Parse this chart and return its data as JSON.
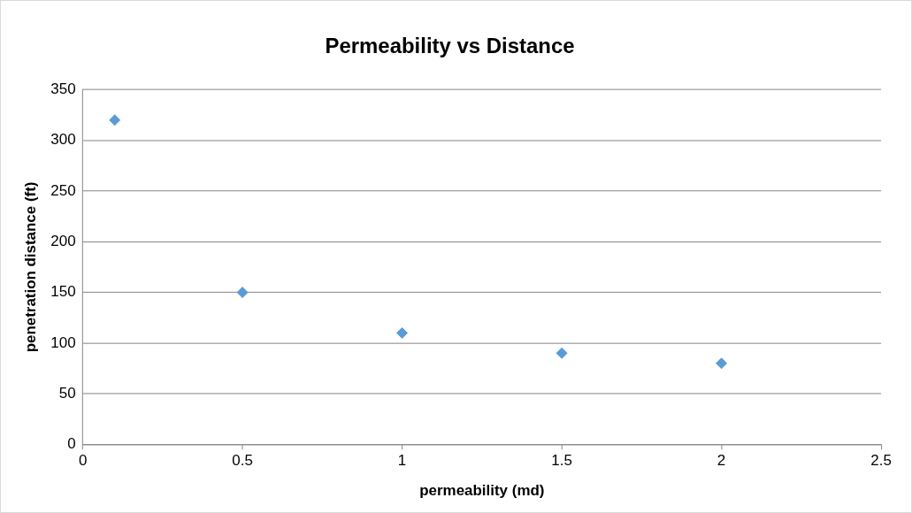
{
  "chart_data": {
    "type": "scatter",
    "title": "Permeability vs Distance",
    "xlabel": "permeability (md)",
    "ylabel": "penetration distance (ft)",
    "x": [
      0.1,
      0.5,
      1,
      1.5,
      2
    ],
    "series": [
      {
        "color": "#5b9bd5",
        "values": [
          320,
          150,
          110,
          90,
          80
        ]
      }
    ],
    "xlim": [
      0,
      2.5
    ],
    "xticks": [
      0,
      0.5,
      1,
      1.5,
      2,
      2.5
    ],
    "ylim": [
      0,
      350
    ],
    "yticks": [
      0,
      50,
      100,
      150,
      200,
      250,
      300,
      350
    ],
    "grid": "y",
    "marker": "diamond",
    "legend": false
  }
}
